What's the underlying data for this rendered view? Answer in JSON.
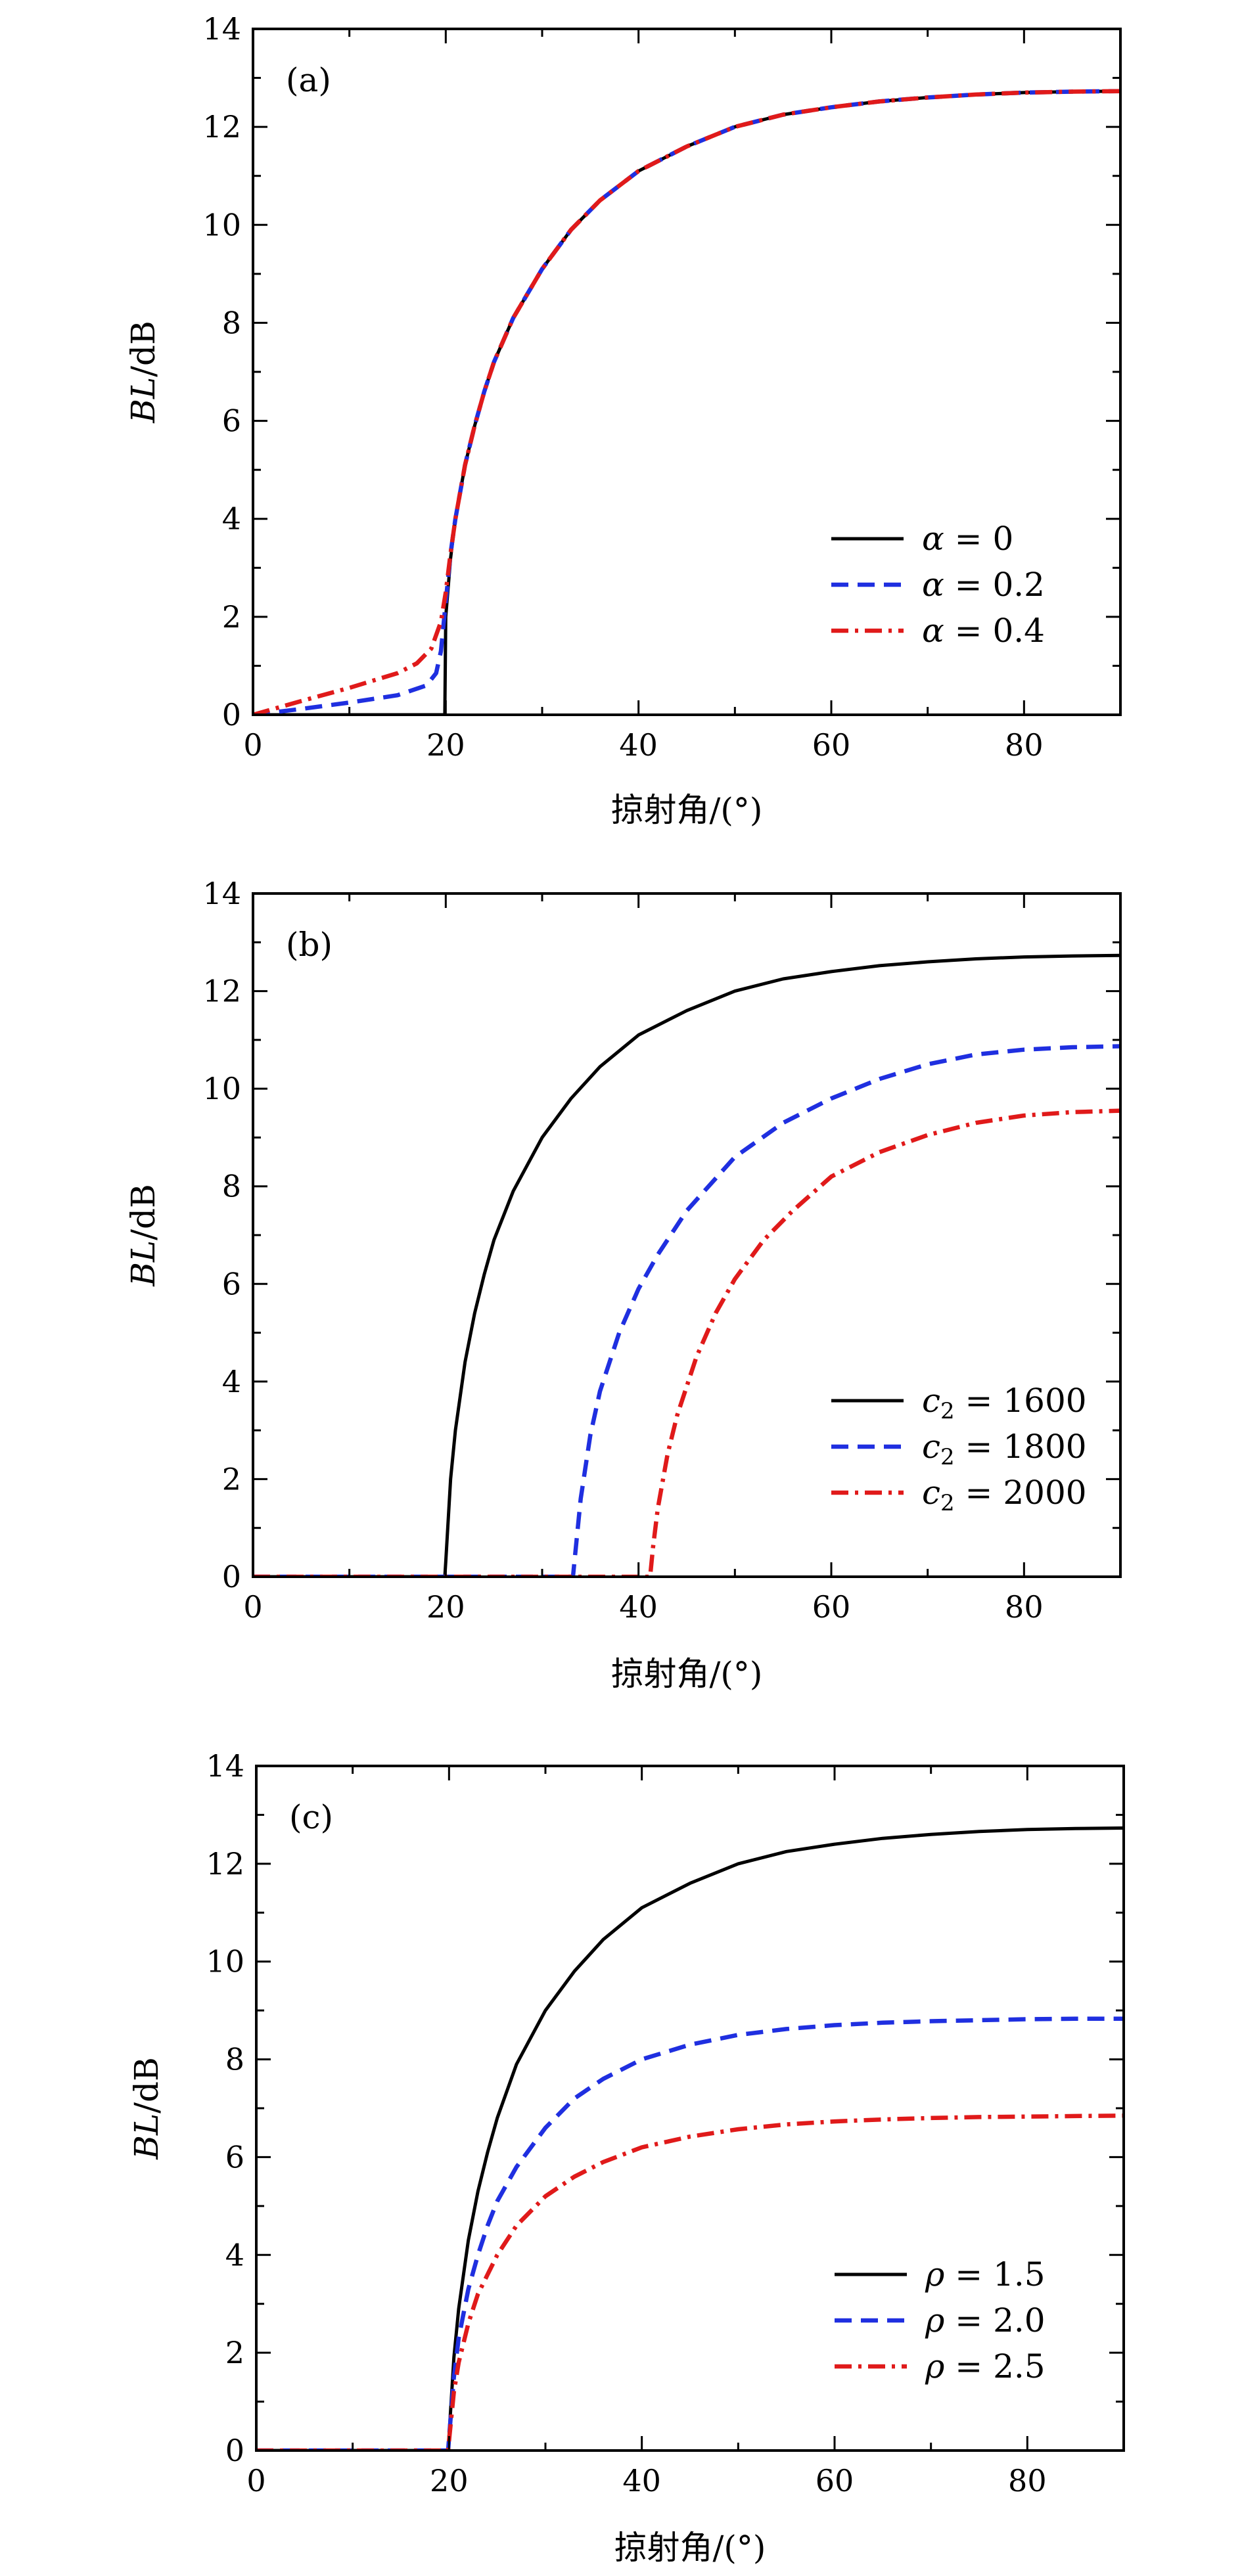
{
  "chart_data": [
    {
      "type": "line",
      "panel_label": "(a)",
      "xlabel": "掠射角/(°)",
      "ylabel": "BL/dB",
      "xlim": [
        0,
        90
      ],
      "ylim": [
        0,
        14
      ],
      "xticks": [
        0,
        20,
        40,
        60,
        80
      ],
      "yticks": [
        0,
        2,
        4,
        6,
        8,
        10,
        12,
        14
      ],
      "grid": false,
      "legend_position": "bottom-right",
      "series": [
        {
          "name": "α = 0",
          "color": "#000000",
          "style": "solid",
          "x": [
            0,
            19.9,
            20,
            20.5,
            21,
            22,
            23,
            24,
            25,
            27,
            30,
            33,
            36,
            40,
            45,
            50,
            55,
            60,
            65,
            70,
            75,
            80,
            85,
            90
          ],
          "y": [
            0,
            0,
            2.0,
            3.2,
            4.0,
            5.1,
            5.9,
            6.6,
            7.2,
            8.1,
            9.1,
            9.9,
            10.5,
            11.1,
            11.6,
            12.0,
            12.25,
            12.4,
            12.52,
            12.6,
            12.66,
            12.7,
            12.72,
            12.73
          ]
        },
        {
          "name": "α = 0.2",
          "color": "#1f2fe0",
          "style": "dashed",
          "x": [
            0,
            5,
            10,
            15,
            18,
            19,
            19.5,
            20,
            20.5,
            21,
            22,
            23,
            24,
            25,
            27,
            30,
            33,
            36,
            40,
            45,
            50,
            55,
            60,
            65,
            70,
            75,
            80,
            85,
            90
          ],
          "y": [
            0,
            0.12,
            0.25,
            0.4,
            0.6,
            0.85,
            1.3,
            2.3,
            3.3,
            4.0,
            5.1,
            5.9,
            6.6,
            7.2,
            8.1,
            9.1,
            9.9,
            10.5,
            11.1,
            11.6,
            12.0,
            12.25,
            12.4,
            12.52,
            12.6,
            12.66,
            12.7,
            12.72,
            12.73
          ]
        },
        {
          "name": "α = 0.4",
          "color": "#e01a1a",
          "style": "dashdot",
          "x": [
            0,
            5,
            10,
            15,
            17,
            18.5,
            19.5,
            20,
            20.5,
            21,
            22,
            23,
            24,
            25,
            27,
            30,
            33,
            36,
            40,
            45,
            50,
            55,
            60,
            65,
            70,
            75,
            80,
            85,
            90
          ],
          "y": [
            0,
            0.28,
            0.55,
            0.85,
            1.05,
            1.35,
            1.9,
            2.5,
            3.3,
            4.0,
            5.1,
            5.9,
            6.6,
            7.2,
            8.1,
            9.1,
            9.9,
            10.5,
            11.1,
            11.6,
            12.0,
            12.25,
            12.4,
            12.52,
            12.6,
            12.66,
            12.7,
            12.72,
            12.73
          ]
        }
      ]
    },
    {
      "type": "line",
      "panel_label": "(b)",
      "xlabel": "掠射角/(°)",
      "ylabel": "BL/dB",
      "xlim": [
        0,
        90
      ],
      "ylim": [
        0,
        14
      ],
      "xticks": [
        0,
        20,
        40,
        60,
        80
      ],
      "yticks": [
        0,
        2,
        4,
        6,
        8,
        10,
        12,
        14
      ],
      "grid": false,
      "legend_position": "bottom-right",
      "series": [
        {
          "name": "c2 = 1600",
          "color": "#000000",
          "style": "solid",
          "x": [
            0,
            19.9,
            20,
            20.5,
            21,
            22,
            23,
            24,
            25,
            27,
            30,
            33,
            36,
            40,
            45,
            50,
            55,
            60,
            65,
            70,
            75,
            80,
            85,
            90
          ],
          "y": [
            0,
            0,
            0.3,
            2.0,
            3.0,
            4.4,
            5.4,
            6.2,
            6.9,
            7.9,
            9.0,
            9.8,
            10.45,
            11.1,
            11.6,
            12.0,
            12.25,
            12.4,
            12.52,
            12.6,
            12.66,
            12.7,
            12.72,
            12.73
          ]
        },
        {
          "name": "c2 = 1800",
          "color": "#1f2fe0",
          "style": "dashed",
          "x": [
            0,
            33.2,
            33.5,
            34,
            35,
            36,
            38,
            40,
            42,
            45,
            50,
            55,
            60,
            65,
            70,
            75,
            80,
            85,
            90
          ],
          "y": [
            0,
            0,
            0.6,
            1.6,
            2.9,
            3.8,
            5.0,
            5.9,
            6.6,
            7.5,
            8.6,
            9.3,
            9.8,
            10.2,
            10.5,
            10.7,
            10.8,
            10.85,
            10.87
          ]
        },
        {
          "name": "c2 = 2000",
          "color": "#e01a1a",
          "style": "dashdot",
          "x": [
            0,
            41.2,
            41.5,
            42,
            43,
            44,
            46,
            48,
            50,
            53,
            56,
            60,
            65,
            70,
            75,
            80,
            85,
            90
          ],
          "y": [
            0,
            0,
            0.6,
            1.4,
            2.5,
            3.3,
            4.5,
            5.4,
            6.1,
            6.9,
            7.5,
            8.2,
            8.7,
            9.05,
            9.3,
            9.45,
            9.52,
            9.55
          ]
        }
      ]
    },
    {
      "type": "line",
      "panel_label": "(c)",
      "xlabel": "掠射角/(°)",
      "ylabel": "BL/dB",
      "xlim": [
        0,
        90
      ],
      "ylim": [
        0,
        14
      ],
      "xticks": [
        0,
        20,
        40,
        60,
        80
      ],
      "yticks": [
        0,
        2,
        4,
        6,
        8,
        10,
        12,
        14
      ],
      "grid": false,
      "legend_position": "bottom-right",
      "series": [
        {
          "name": "ρ = 1.5",
          "color": "#000000",
          "style": "solid",
          "x": [
            0,
            19.9,
            20,
            20.5,
            21,
            22,
            23,
            24,
            25,
            27,
            30,
            33,
            36,
            40,
            45,
            50,
            55,
            60,
            65,
            70,
            75,
            80,
            85,
            90
          ],
          "y": [
            0,
            0,
            0.3,
            1.9,
            2.9,
            4.3,
            5.3,
            6.1,
            6.8,
            7.9,
            9.0,
            9.8,
            10.45,
            11.1,
            11.6,
            12.0,
            12.25,
            12.4,
            12.52,
            12.6,
            12.66,
            12.7,
            12.72,
            12.73
          ]
        },
        {
          "name": "ρ = 2.0",
          "color": "#1f2fe0",
          "style": "dashed",
          "x": [
            0,
            19.9,
            20,
            20.5,
            21,
            22,
            23,
            24,
            25,
            27,
            30,
            33,
            36,
            40,
            45,
            50,
            55,
            60,
            65,
            70,
            75,
            80,
            85,
            90
          ],
          "y": [
            0,
            0,
            0.25,
            1.5,
            2.3,
            3.3,
            4.0,
            4.6,
            5.1,
            5.8,
            6.6,
            7.2,
            7.6,
            8.0,
            8.3,
            8.5,
            8.62,
            8.7,
            8.75,
            8.78,
            8.8,
            8.82,
            8.83,
            8.83
          ]
        },
        {
          "name": "ρ = 2.5",
          "color": "#e01a1a",
          "style": "dashdot",
          "x": [
            0,
            19.9,
            20,
            20.5,
            21,
            22,
            23,
            24,
            25,
            27,
            30,
            33,
            36,
            40,
            45,
            50,
            55,
            60,
            65,
            70,
            75,
            80,
            85,
            90
          ],
          "y": [
            0,
            0,
            0.2,
            1.2,
            1.8,
            2.6,
            3.2,
            3.6,
            4.0,
            4.6,
            5.2,
            5.6,
            5.9,
            6.2,
            6.42,
            6.57,
            6.67,
            6.73,
            6.77,
            6.8,
            6.82,
            6.83,
            6.84,
            6.85
          ]
        }
      ]
    }
  ],
  "legend_rows": [
    [
      {
        "symbol": "α",
        "eq": " = ",
        "value": "0"
      },
      {
        "symbol": "α",
        "eq": " = ",
        "value": "0.2"
      },
      {
        "symbol": "α",
        "eq": " = ",
        "value": "0.4"
      }
    ],
    [
      {
        "symbol": "c",
        "sub": "2",
        "eq": " = ",
        "value": "1600"
      },
      {
        "symbol": "c",
        "sub": "2",
        "eq": " = ",
        "value": "1800"
      },
      {
        "symbol": "c",
        "sub": "2",
        "eq": " = ",
        "value": "2000"
      }
    ],
    [
      {
        "symbol": "ρ",
        "eq": " = ",
        "value": "1.5"
      },
      {
        "symbol": "ρ",
        "eq": " = ",
        "value": "2.0"
      },
      {
        "symbol": "ρ",
        "eq": " = ",
        "value": "2.5"
      }
    ]
  ],
  "ylabel_parts": {
    "italic": "BL",
    "rest": "/dB"
  }
}
